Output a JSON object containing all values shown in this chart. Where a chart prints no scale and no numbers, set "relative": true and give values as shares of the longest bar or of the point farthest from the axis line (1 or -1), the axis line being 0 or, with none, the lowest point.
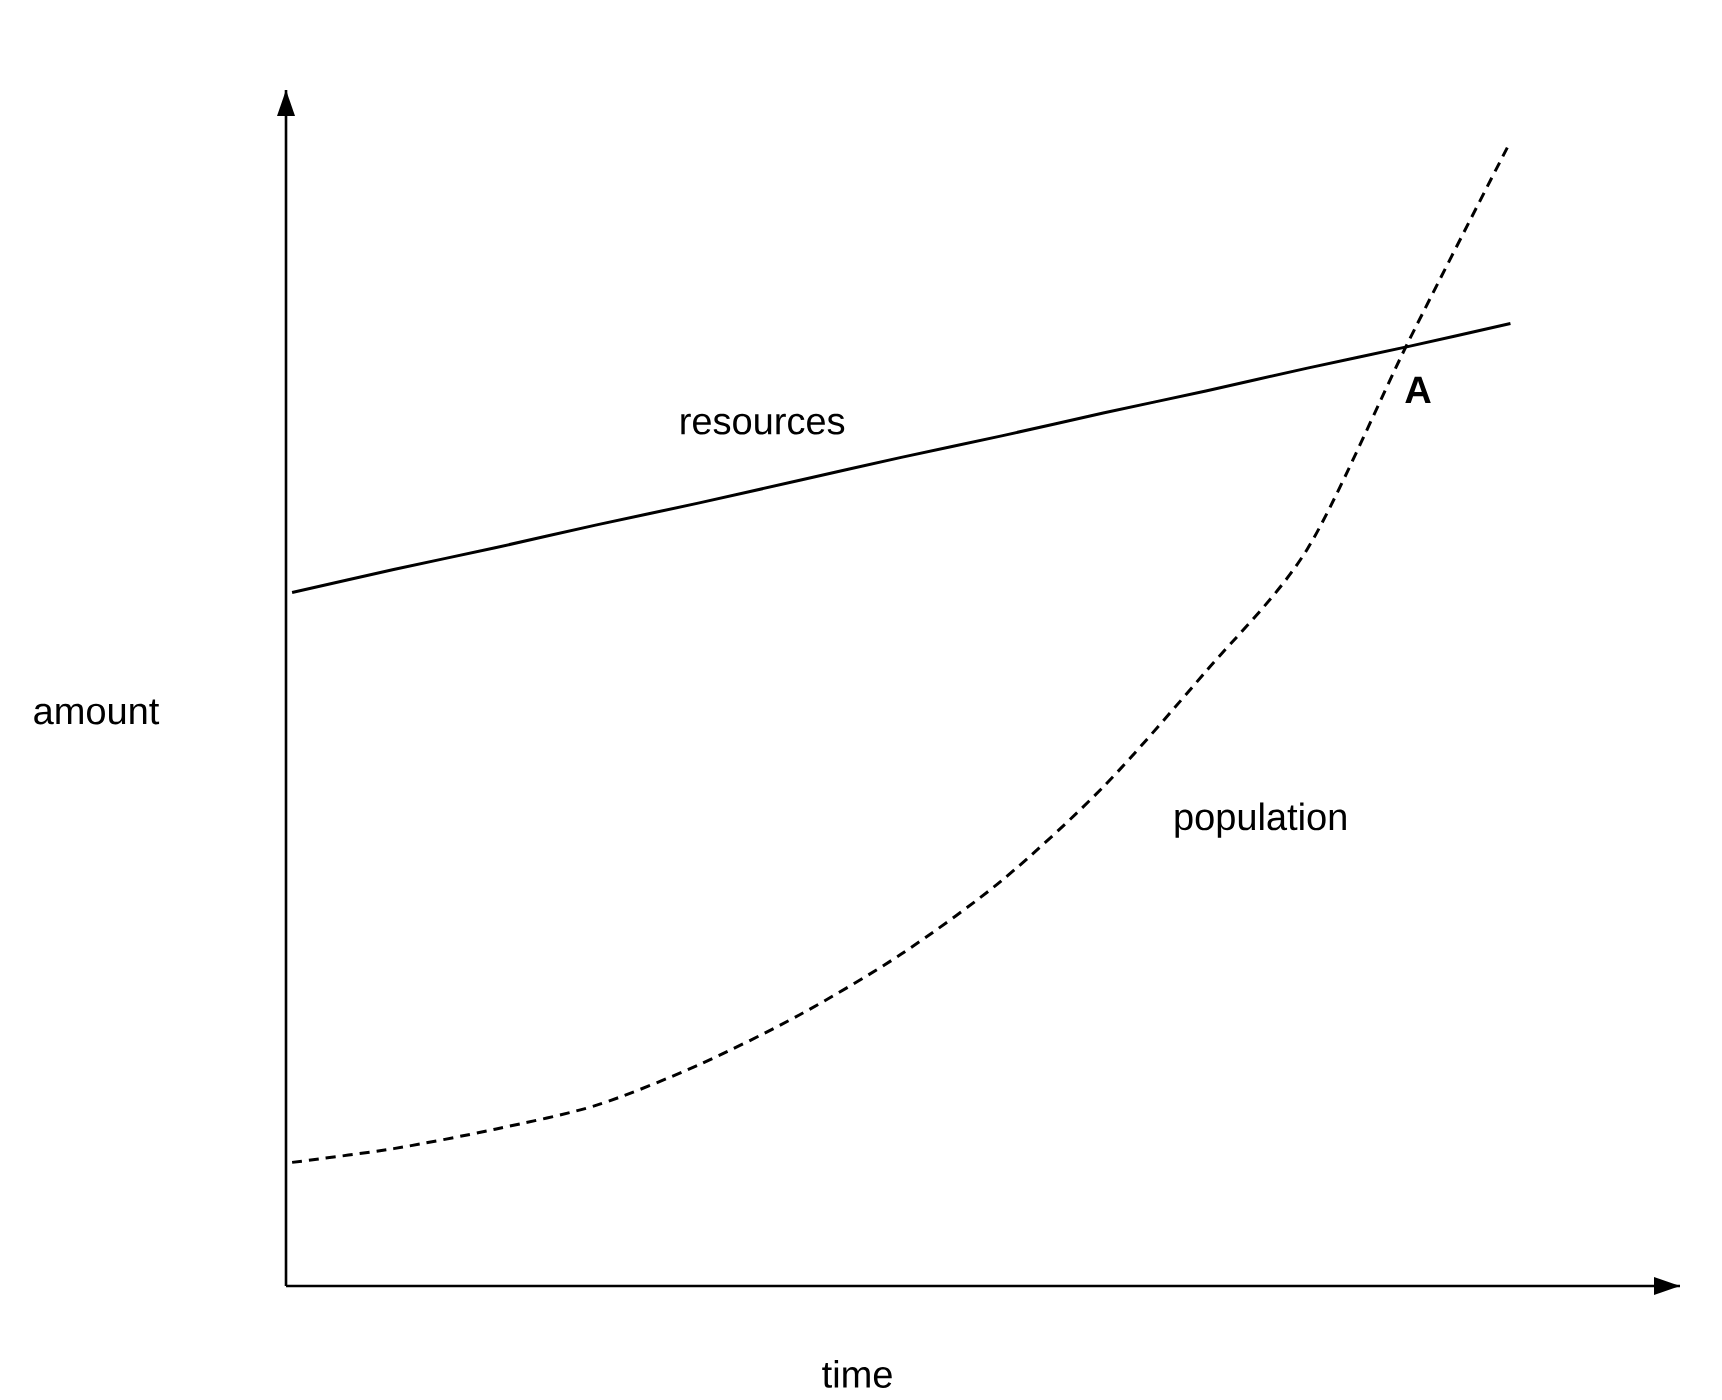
{
  "chart_data": {
    "type": "line",
    "xlabel": "time",
    "ylabel": "amount",
    "relative": true,
    "categories": [
      null,
      null,
      null,
      null,
      null,
      null,
      null,
      null,
      null,
      null,
      null,
      null,
      null
    ],
    "series": [
      {
        "name": "resources",
        "color": "#000000",
        "line_style": "solid",
        "values": [
          0.606,
          0.626,
          0.645,
          0.665,
          0.684,
          0.704,
          0.724,
          0.743,
          0.763,
          0.782,
          0.802,
          0.821,
          0.841
        ]
      },
      {
        "name": "population",
        "color": "#000000",
        "line_style": "dashed",
        "values": [
          0.108,
          0.12,
          0.137,
          0.158,
          0.193,
          0.237,
          0.29,
          0.355,
          0.437,
          0.537,
          0.644,
          0.826,
          1.0
        ]
      }
    ],
    "annotations": [
      "A"
    ]
  }
}
